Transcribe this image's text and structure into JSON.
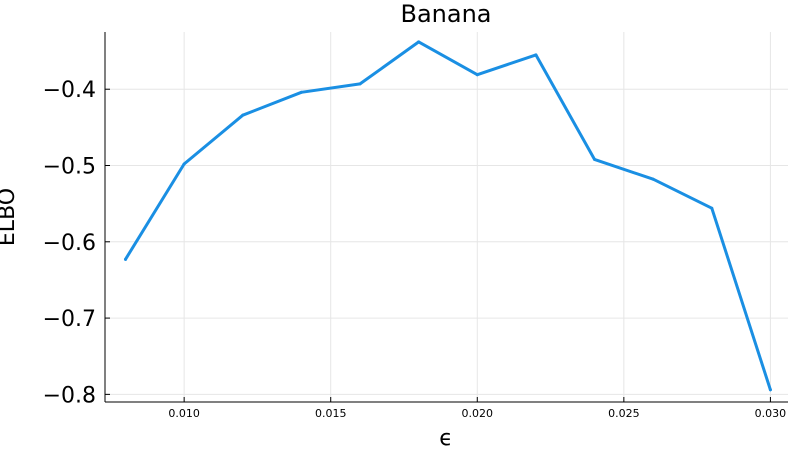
{
  "chart_data": {
    "type": "line",
    "title": "Banana",
    "xlabel": "ϵ",
    "ylabel": "ELBO",
    "xlim": [
      0.0073,
      0.0306
    ],
    "ylim": [
      -0.81,
      -0.325
    ],
    "x_ticks": [
      0.01,
      0.015,
      0.02,
      0.025,
      0.03
    ],
    "x_tick_labels": [
      "0.010",
      "0.015",
      "0.020",
      "0.025",
      "0.030"
    ],
    "y_ticks": [
      -0.4,
      -0.5,
      -0.6,
      -0.7,
      -0.8
    ],
    "y_tick_labels": [
      "−0.4",
      "−0.5",
      "−0.6",
      "−0.7",
      "−0.8"
    ],
    "grid": true,
    "series": [
      {
        "color": "#1a8fe3",
        "x": [
          0.008,
          0.01,
          0.012,
          0.014,
          0.016,
          0.018,
          0.02,
          0.022,
          0.024,
          0.026,
          0.028,
          0.03
        ],
        "y": [
          -0.623,
          -0.498,
          -0.434,
          -0.404,
          -0.393,
          -0.338,
          -0.381,
          -0.355,
          -0.492,
          -0.518,
          -0.556,
          -0.794
        ]
      }
    ]
  }
}
